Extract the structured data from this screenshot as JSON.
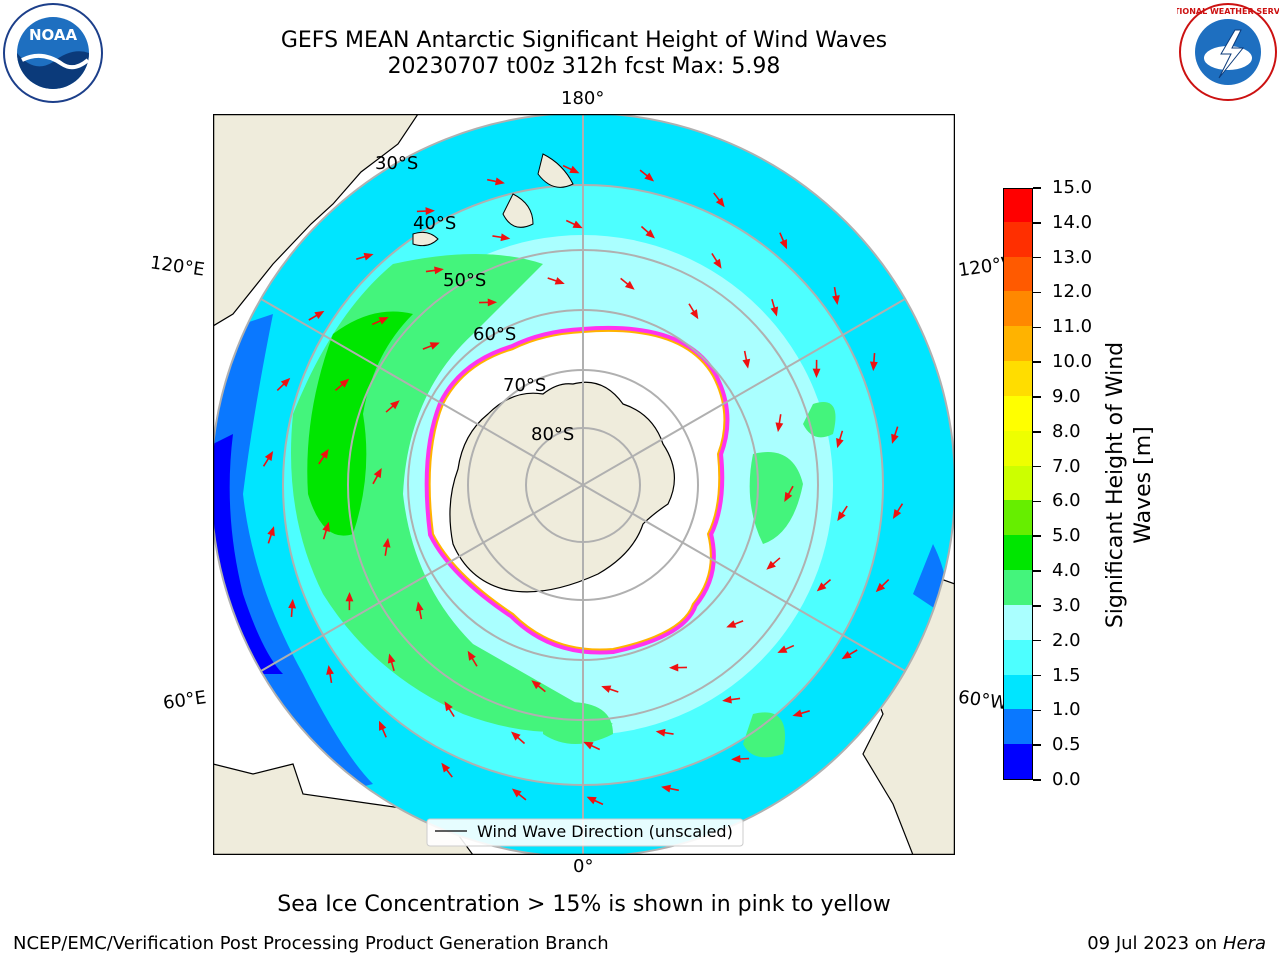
{
  "title": {
    "line1": "GEFS MEAN Antarctic Significant Height of Wind Waves",
    "line2": "20230707 t00z 312h fcst   Max: 5.98"
  },
  "logos": {
    "left": {
      "text": "NOAA",
      "icon": "noaa-logo"
    },
    "right": {
      "text": "NATIONAL WEATHER SERVICE",
      "icon": "nws-logo"
    }
  },
  "map": {
    "projection": "south-polar-stereographic",
    "meridian_labels": {
      "top": "180°",
      "bottom": "0°",
      "upper_left": "120°E",
      "upper_right": "120°W",
      "lower_left": "60°E",
      "lower_right": "60°W"
    },
    "latitude_labels": [
      "30°S",
      "40°S",
      "50°S",
      "60°S",
      "70°S",
      "80°S"
    ],
    "legend": "Wind Wave Direction (unscaled)",
    "colors": {
      "land": "#efecdc",
      "ice": "#ffffff",
      "arrow": "#ee1111",
      "grid": "#b0b0b0"
    }
  },
  "colorbar": {
    "title_line1": "Significant Height of Wind",
    "title_line2": "Waves [m]",
    "ticks": [
      "0.0",
      "0.5",
      "1.0",
      "1.5",
      "2.0",
      "3.0",
      "4.0",
      "5.0",
      "6.0",
      "7.0",
      "8.0",
      "9.0",
      "10.0",
      "11.0",
      "12.0",
      "13.0",
      "14.0",
      "15.0"
    ],
    "colors": [
      "#0000ff",
      "#0a78ff",
      "#00e5ff",
      "#4dffff",
      "#aaffff",
      "#44f47c",
      "#00e600",
      "#66ee00",
      "#ccff00",
      "#eeff00",
      "#ffff00",
      "#ffdd00",
      "#ffb300",
      "#ff8800",
      "#ff5a00",
      "#ff2f00",
      "#ff0000"
    ]
  },
  "footer": {
    "note": "Sea Ice Concentration > 15% is shown in pink to yellow",
    "credit": "NCEP/EMC/Verification Post Processing Product Generation Branch",
    "date": "09 Jul 2023 on ",
    "host": "Hera"
  }
}
